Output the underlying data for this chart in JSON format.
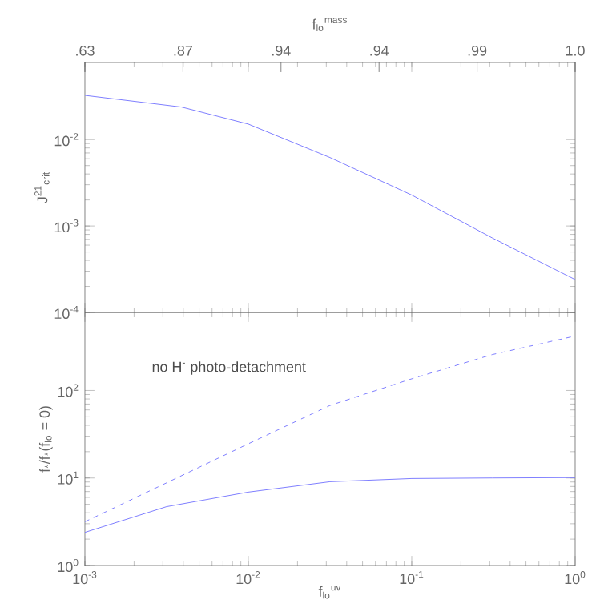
{
  "chart_data": [
    {
      "type": "line",
      "x2label": "f$_{lo}$$^{mass}$",
      "ylabel": "J$^{21}$$_{crit}$",
      "log": "xy",
      "color": "#8080ff",
      "tick_labels": "y",
      "x": [
        0.001,
        0.0039,
        0.01,
        0.0316,
        0.1,
        0.31,
        1
      ],
      "values": [
        0.0325,
        0.0238,
        0.0151,
        0.0062,
        0.00228,
        0.00073,
        0.00024
      ],
      "xlim": [
        0.001,
        1
      ],
      "ylim": [
        0.0001,
        0.078
      ],
      "xticks": [
        {
          "value": 0.001,
          "label": null
        },
        {
          "value": 0.01,
          "label": null
        },
        {
          "value": 0.1,
          "label": null
        },
        {
          "value": 1,
          "label": null
        }
      ],
      "yticks": [
        {
          "value": 0.0001,
          "label": "10$^{-4}$"
        },
        {
          "value": 0.001,
          "label": "10$^{-3}$"
        },
        {
          "value": 0.01,
          "label": "10$^{-2}$"
        }
      ],
      "annotations": [
        ".63",
        ".87",
        ".94",
        ".94",
        ".99",
        "1.0"
      ]
    },
    {
      "type": "line",
      "xlabel": "f$_{lo}$$^{uv}$",
      "ylabel": "f$_{*}$/f$_{*}$(f$_{lo}$ = 0)",
      "log": "xy",
      "x": [
        0.001,
        0.00316,
        0.01,
        0.0316,
        0.1,
        0.31,
        1
      ],
      "series": [
        {
          "color": "#8080ff",
          "line_style": "solid",
          "values": [
            2.39,
            4.7,
            6.9,
            9.06,
            9.86,
            10.0,
            10.1
          ]
        },
        {
          "color": "#8080ff",
          "line_style": "dashed",
          "values": [
            3.16,
            8.8,
            24.6,
            67.5,
            136,
            257,
            419
          ]
        }
      ],
      "annotations": [
        "no H$^{-}$ photo-detachment"
      ],
      "xlim": [
        0.001,
        1
      ],
      "ylim": [
        1,
        780
      ],
      "xticks": [
        {
          "value": 0.001,
          "label": "10$^{-3}$"
        },
        {
          "value": 0.01,
          "label": "10$^{-2}$"
        },
        {
          "value": 0.1,
          "label": "10$^{-1}$"
        },
        {
          "value": 1,
          "label": "10$^{0}$"
        }
      ],
      "yticks": [
        {
          "value": 1,
          "label": "10$^{0}$"
        },
        {
          "value": 10,
          "label": "10$^{1}$"
        },
        {
          "value": 100,
          "label": "10$^{2}$"
        }
      ]
    }
  ]
}
